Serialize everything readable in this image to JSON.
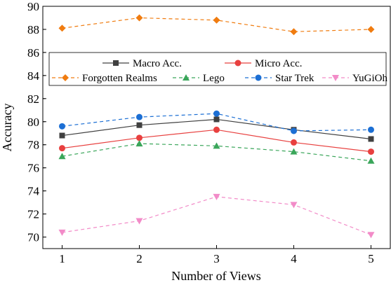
{
  "chart_data": {
    "type": "line",
    "xlabel": "Number of Views",
    "ylabel": "Accuracy",
    "x": [
      1,
      2,
      3,
      4,
      5
    ],
    "xlim": [
      0.75,
      5.25
    ],
    "ylim": [
      69,
      90
    ],
    "xticks": [
      "1",
      "2",
      "3",
      "4",
      "5"
    ],
    "yticks": [
      "70",
      "72",
      "74",
      "76",
      "78",
      "80",
      "82",
      "84",
      "86",
      "88",
      "90"
    ],
    "legend_position": "upper-center",
    "grid": false,
    "series": [
      {
        "name": "Macro Acc.",
        "values": [
          78.8,
          79.7,
          80.2,
          79.3,
          78.5
        ],
        "color": "#404040",
        "marker": "square",
        "dash": "solid"
      },
      {
        "name": "Micro Acc.",
        "values": [
          77.7,
          78.6,
          79.3,
          78.2,
          77.4
        ],
        "color": "#e8403f",
        "marker": "circle",
        "dash": "solid"
      },
      {
        "name": "Forgotten Realms",
        "values": [
          88.1,
          89.0,
          88.8,
          87.8,
          88.0
        ],
        "color": "#f07c10",
        "marker": "diamond",
        "dash": "dashed"
      },
      {
        "name": "Lego",
        "values": [
          77.0,
          78.1,
          77.9,
          77.4,
          76.6
        ],
        "color": "#3aa65a",
        "marker": "triangle-up",
        "dash": "dashed"
      },
      {
        "name": "Star Trek",
        "values": [
          79.6,
          80.4,
          80.7,
          79.2,
          79.3
        ],
        "color": "#1c6fd4",
        "marker": "circle",
        "dash": "dashed"
      },
      {
        "name": "YuGiOh",
        "values": [
          70.4,
          71.4,
          73.5,
          72.8,
          70.2
        ],
        "color": "#f28bc8",
        "marker": "triangle-down",
        "dash": "dashed"
      }
    ]
  }
}
